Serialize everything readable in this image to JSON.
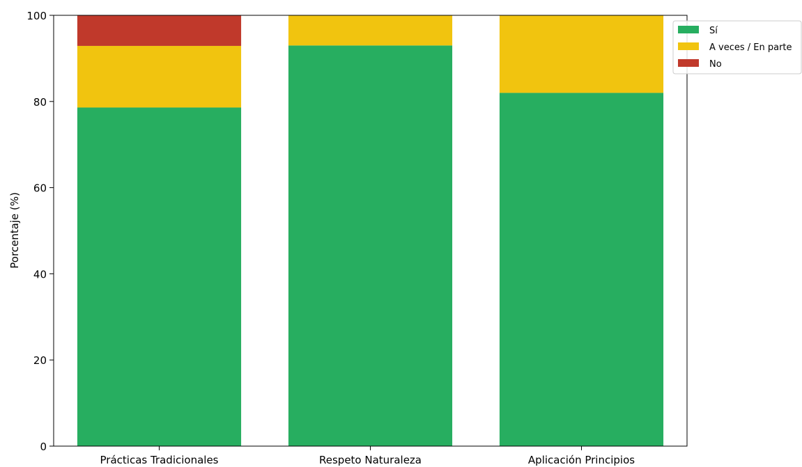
{
  "chart_data": {
    "type": "bar",
    "stacked": true,
    "title": "",
    "xlabel": "",
    "ylabel": "Porcentaje (%)",
    "ylim": [
      0,
      100
    ],
    "yticks": [
      0,
      20,
      40,
      60,
      80,
      100
    ],
    "categories": [
      "Prácticas Tradicionales",
      "Respeto Naturaleza",
      "Aplicación Principios"
    ],
    "series": [
      {
        "name": "Sí",
        "color": "#27ae60",
        "values": [
          78.6,
          93.0,
          82.0
        ]
      },
      {
        "name": "A veces / En parte",
        "color": "#f1c40f",
        "values": [
          14.3,
          7.0,
          18.0
        ]
      },
      {
        "name": "No",
        "color": "#c0392b",
        "values": [
          7.1,
          0.0,
          0.0
        ]
      }
    ],
    "grid": false,
    "legend": "top-right"
  }
}
